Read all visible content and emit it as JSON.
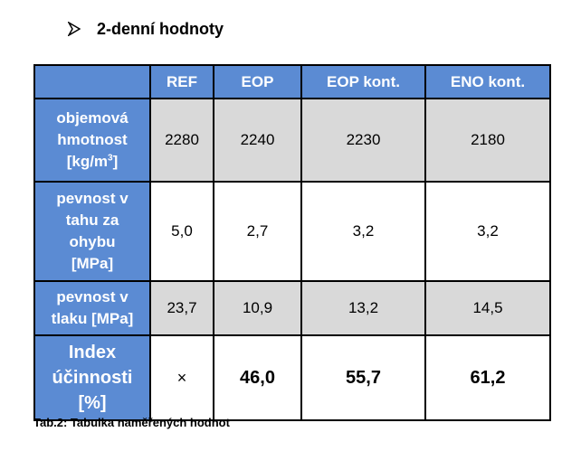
{
  "heading": {
    "icon": "arrow-bullet-icon",
    "title": "2-denní hodnoty"
  },
  "table": {
    "columns": [
      "",
      "REF",
      "EOP",
      "EOP kont.",
      "ENO kont."
    ],
    "rows": [
      {
        "label_lines": [
          "objemová",
          "hmotnost",
          "[kg/m",
          "3",
          "]"
        ],
        "values": [
          "2280",
          "2240",
          "2230",
          "2180"
        ],
        "shade": "gray"
      },
      {
        "label_lines": [
          "pevnost v",
          "tahu za",
          "ohybu",
          "[MPa]"
        ],
        "values": [
          "5,0",
          "2,7",
          "3,2",
          "3,2"
        ],
        "shade": "white"
      },
      {
        "label_lines": [
          "pevnost v",
          "tlaku [MPa]"
        ],
        "values": [
          "23,7",
          "10,9",
          "13,2",
          "14,5"
        ],
        "shade": "gray"
      },
      {
        "label_lines": [
          "Index",
          "účinnosti",
          "[%]"
        ],
        "values": [
          "×",
          "46,0",
          "55,7",
          "61,2"
        ],
        "shade": "white"
      }
    ],
    "colors": {
      "header_blue": "#5b8bd3",
      "header_text": "#ffffff",
      "gray_cell": "#d9d9d9",
      "border": "#000000"
    }
  },
  "caption": "Tab.2: Tabulka naměřených hodnot"
}
